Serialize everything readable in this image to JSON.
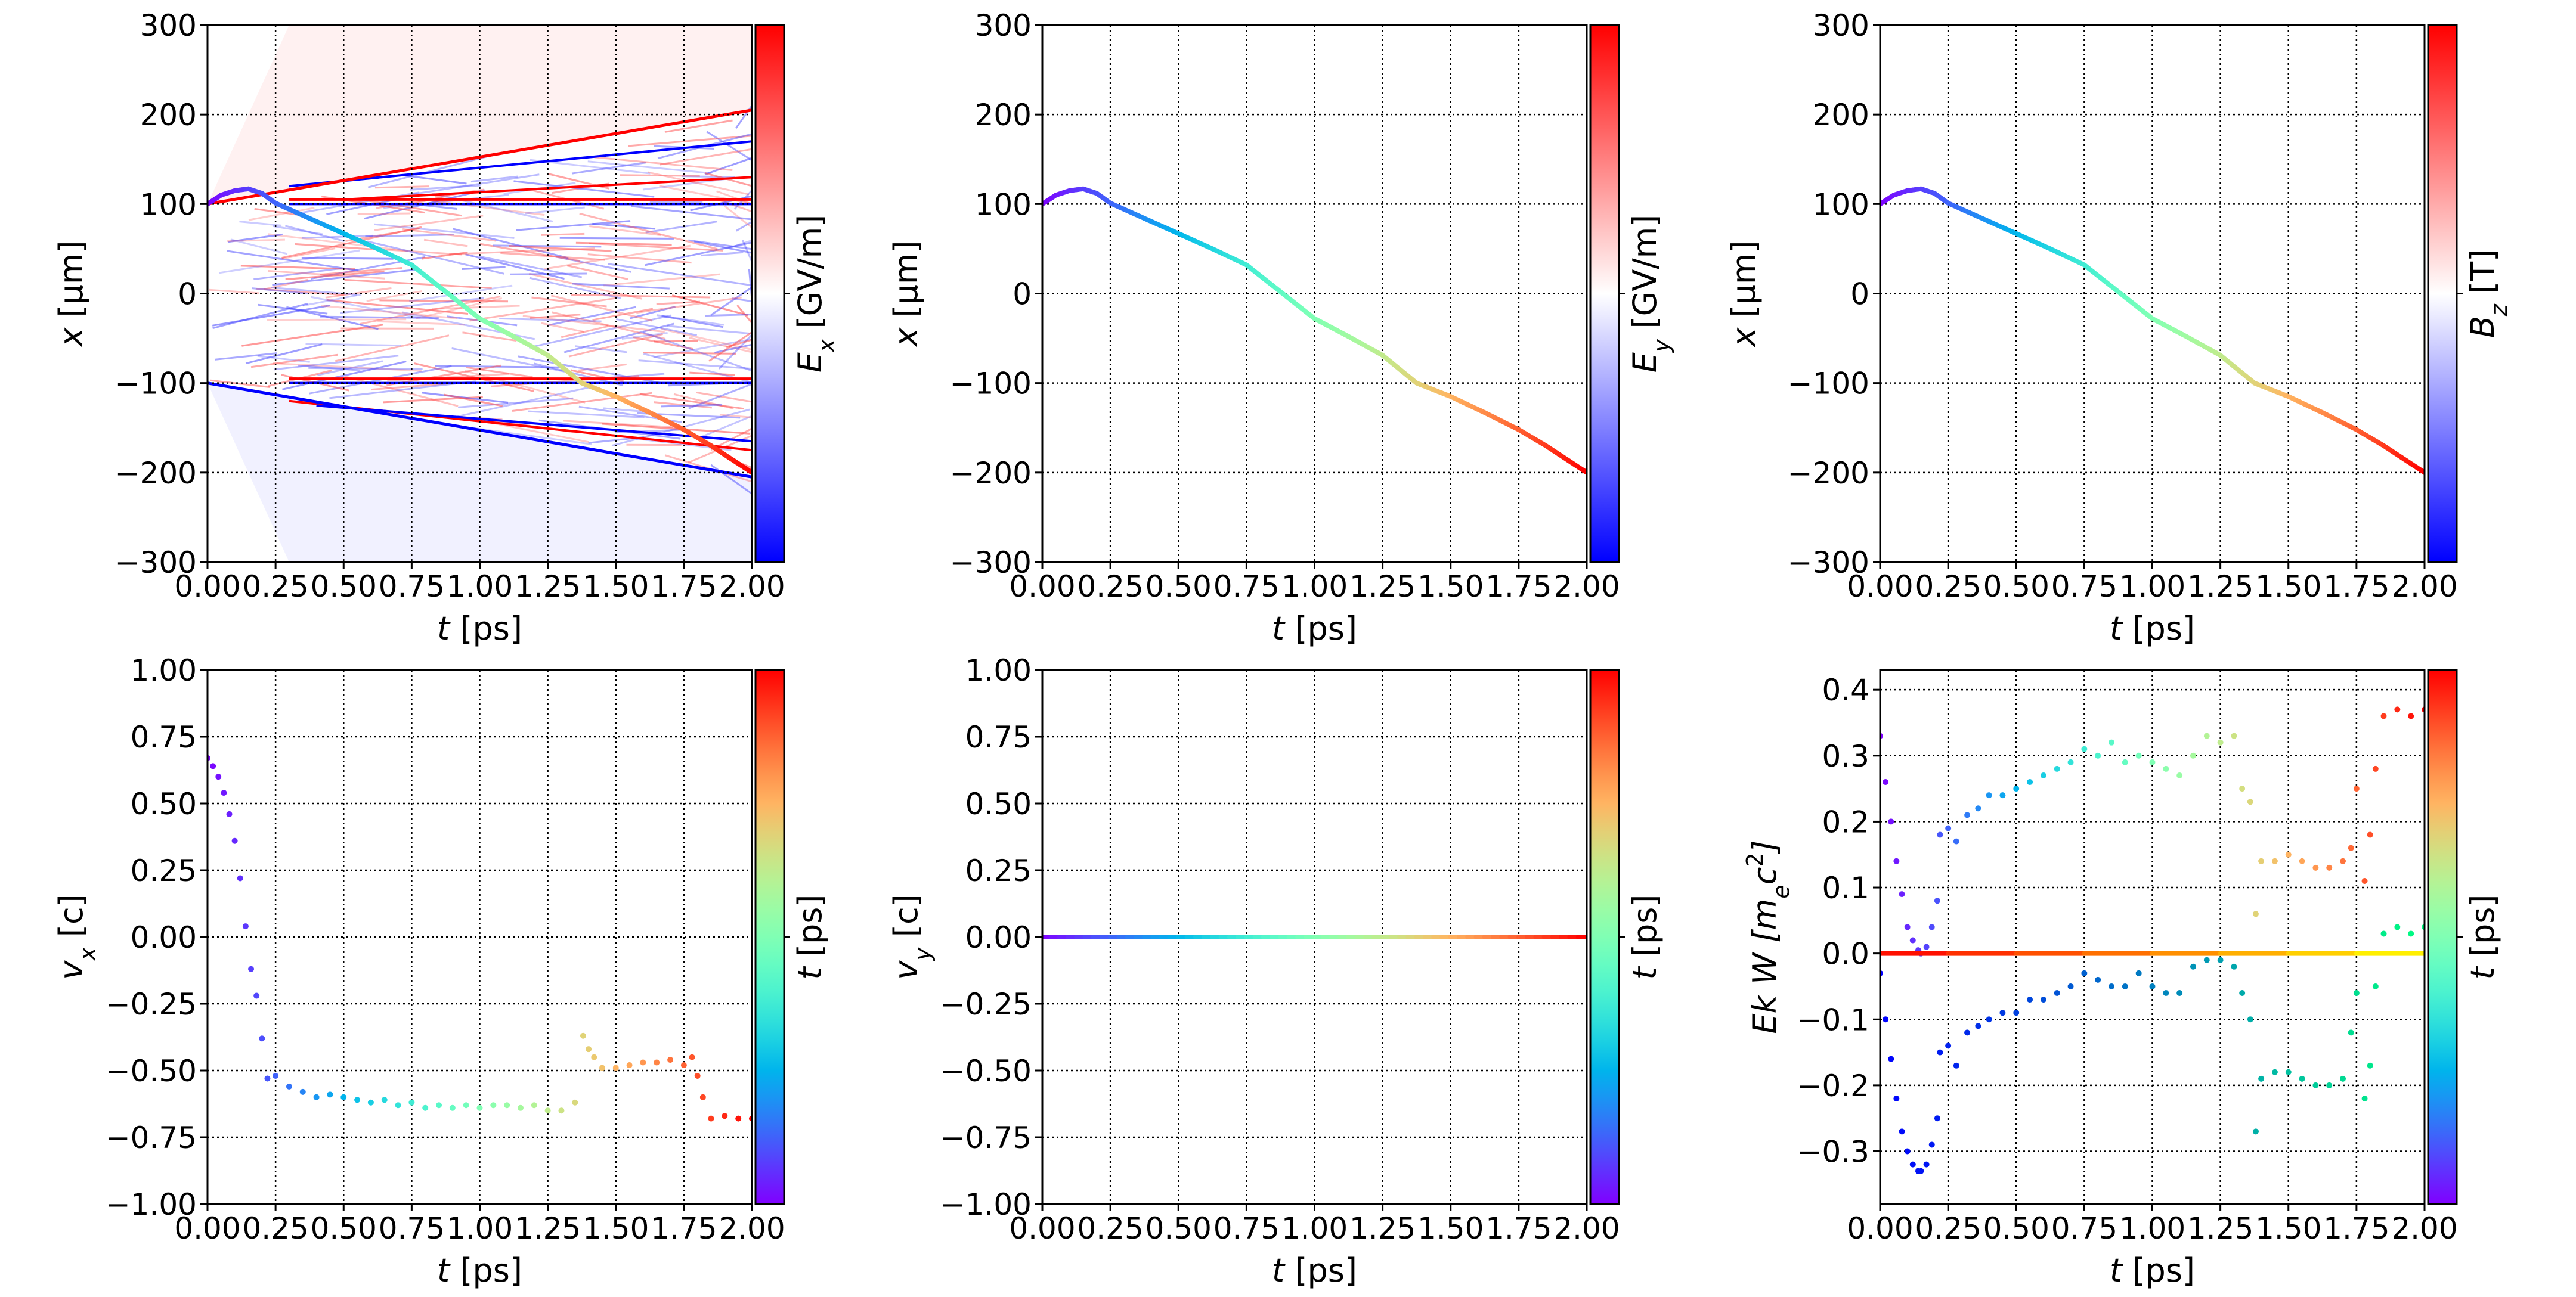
{
  "chart_data": [
    {
      "type": "line",
      "panel": "top-left",
      "background": "heatmap field Ex (bwr colormap)",
      "xlabel": [
        {
          "t": "t",
          "s": "i"
        },
        {
          "t": "  [ps]"
        }
      ],
      "ylabel": [
        {
          "t": "x",
          "s": "i"
        },
        {
          "t": "  [μm]"
        }
      ],
      "colorbar": {
        "cmap": "bwr",
        "label": [
          {
            "t": "E",
            "s": "i"
          },
          {
            "t": "x",
            "s": "sub"
          },
          {
            "t": "  [GV/m]"
          }
        ]
      },
      "xlim": [
        0,
        2
      ],
      "ylim": [
        -300,
        300
      ],
      "grid": true,
      "xticks": [
        0,
        0.25,
        0.5,
        0.75,
        1.0,
        1.25,
        1.5,
        1.75,
        2.0
      ],
      "xticklabels": [
        "0.00",
        "0.25",
        "0.50",
        "0.75",
        "1.00",
        "1.25",
        "1.50",
        "1.75",
        "2.00"
      ],
      "yticks": [
        -300,
        -200,
        -100,
        0,
        100,
        200,
        300
      ],
      "yticklabels": [
        "−300",
        "−200",
        "−100",
        "0",
        "100",
        "200",
        "300"
      ],
      "field_boundaries": {
        "upper": [
          [
            0,
            100
          ],
          [
            2,
            205
          ]
        ],
        "lower": [
          [
            0,
            -100
          ],
          [
            2,
            -205
          ]
        ]
      },
      "series": [
        {
          "color_by": "t",
          "cmap": "rainbow",
          "x": [
            0,
            0.05,
            0.1,
            0.15,
            0.2,
            0.25,
            0.375,
            0.5,
            0.625,
            0.75,
            0.875,
            1.0,
            1.125,
            1.25,
            1.375,
            1.5,
            1.625,
            1.75,
            1.85,
            1.925,
            2.0
          ],
          "y": [
            100,
            110,
            115,
            117,
            112,
            101,
            84,
            67,
            50,
            32,
            2,
            -28,
            -48,
            -69,
            -100,
            -115,
            -133,
            -152,
            -170,
            -185,
            -200
          ]
        }
      ]
    },
    {
      "type": "line",
      "panel": "top-middle",
      "xlabel": [
        {
          "t": "t",
          "s": "i"
        },
        {
          "t": "  [ps]"
        }
      ],
      "ylabel": [
        {
          "t": "x",
          "s": "i"
        },
        {
          "t": "  [μm]"
        }
      ],
      "colorbar": {
        "cmap": "bwr",
        "label": [
          {
            "t": "E",
            "s": "i"
          },
          {
            "t": "y",
            "s": "sub"
          },
          {
            "t": "  [GV/m]"
          }
        ]
      },
      "xlim": [
        0,
        2
      ],
      "ylim": [
        -300,
        300
      ],
      "grid": true,
      "xticks": [
        0,
        0.25,
        0.5,
        0.75,
        1.0,
        1.25,
        1.5,
        1.75,
        2.0
      ],
      "xticklabels": [
        "0.00",
        "0.25",
        "0.50",
        "0.75",
        "1.00",
        "1.25",
        "1.50",
        "1.75",
        "2.00"
      ],
      "yticks": [
        -300,
        -200,
        -100,
        0,
        100,
        200,
        300
      ],
      "yticklabels": [
        "−300",
        "−200",
        "−100",
        "0",
        "100",
        "200",
        "300"
      ],
      "series": [
        {
          "color_by": "t",
          "cmap": "rainbow",
          "x": [
            0,
            0.05,
            0.1,
            0.15,
            0.2,
            0.25,
            0.375,
            0.5,
            0.625,
            0.75,
            0.875,
            1.0,
            1.125,
            1.25,
            1.375,
            1.5,
            1.625,
            1.75,
            1.85,
            1.925,
            2.0
          ],
          "y": [
            100,
            110,
            115,
            117,
            112,
            101,
            84,
            67,
            50,
            32,
            2,
            -28,
            -48,
            -69,
            -100,
            -115,
            -133,
            -152,
            -170,
            -185,
            -200
          ]
        }
      ]
    },
    {
      "type": "line",
      "panel": "top-right",
      "xlabel": [
        {
          "t": "t",
          "s": "i"
        },
        {
          "t": "  [ps]"
        }
      ],
      "ylabel": [
        {
          "t": "x",
          "s": "i"
        },
        {
          "t": "  [μm]"
        }
      ],
      "colorbar": {
        "cmap": "bwr",
        "label": [
          {
            "t": "B",
            "s": "i"
          },
          {
            "t": "z",
            "s": "sub"
          },
          {
            "t": "  [T]"
          }
        ]
      },
      "xlim": [
        0,
        2
      ],
      "ylim": [
        -300,
        300
      ],
      "grid": true,
      "xticks": [
        0,
        0.25,
        0.5,
        0.75,
        1.0,
        1.25,
        1.5,
        1.75,
        2.0
      ],
      "xticklabels": [
        "0.00",
        "0.25",
        "0.50",
        "0.75",
        "1.00",
        "1.25",
        "1.50",
        "1.75",
        "2.00"
      ],
      "yticks": [
        -300,
        -200,
        -100,
        0,
        100,
        200,
        300
      ],
      "yticklabels": [
        "−300",
        "−200",
        "−100",
        "0",
        "100",
        "200",
        "300"
      ],
      "series": [
        {
          "color_by": "t",
          "cmap": "rainbow",
          "x": [
            0,
            0.05,
            0.1,
            0.15,
            0.2,
            0.25,
            0.375,
            0.5,
            0.625,
            0.75,
            0.875,
            1.0,
            1.125,
            1.25,
            1.375,
            1.5,
            1.625,
            1.75,
            1.85,
            1.925,
            2.0
          ],
          "y": [
            100,
            110,
            115,
            117,
            112,
            101,
            84,
            67,
            50,
            32,
            2,
            -28,
            -48,
            -69,
            -100,
            -115,
            -133,
            -152,
            -170,
            -185,
            -200
          ]
        }
      ]
    },
    {
      "type": "scatter",
      "panel": "bottom-left",
      "xlabel": [
        {
          "t": "t",
          "s": "i"
        },
        {
          "t": "  [ps]"
        }
      ],
      "ylabel": [
        {
          "t": "v",
          "s": "i"
        },
        {
          "t": "x",
          "s": "sub"
        },
        {
          "t": " [c]"
        }
      ],
      "colorbar": {
        "cmap": "rainbow",
        "label": [
          {
            "t": "t",
            "s": "i"
          },
          {
            "t": "  [ps]"
          }
        ]
      },
      "xlim": [
        0,
        2
      ],
      "ylim": [
        -1,
        1
      ],
      "grid": true,
      "xticks": [
        0,
        0.25,
        0.5,
        0.75,
        1.0,
        1.25,
        1.5,
        1.75,
        2.0
      ],
      "xticklabels": [
        "0.00",
        "0.25",
        "0.50",
        "0.75",
        "1.00",
        "1.25",
        "1.50",
        "1.75",
        "2.00"
      ],
      "yticks": [
        -1,
        -0.75,
        -0.5,
        -0.25,
        0,
        0.25,
        0.5,
        0.75,
        1
      ],
      "yticklabels": [
        "−1.00",
        "−0.75",
        "−0.50",
        "−0.25",
        "0.00",
        "0.25",
        "0.50",
        "0.75",
        "1.00"
      ],
      "series": [
        {
          "color_by": "t",
          "cmap": "rainbow",
          "x": [
            0,
            0.02,
            0.04,
            0.06,
            0.08,
            0.1,
            0.12,
            0.14,
            0.16,
            0.18,
            0.2,
            0.22,
            0.25,
            0.3,
            0.35,
            0.4,
            0.45,
            0.5,
            0.55,
            0.6,
            0.65,
            0.7,
            0.75,
            0.8,
            0.85,
            0.9,
            0.95,
            1.0,
            1.05,
            1.1,
            1.15,
            1.2,
            1.25,
            1.3,
            1.35,
            1.38,
            1.4,
            1.42,
            1.45,
            1.5,
            1.55,
            1.6,
            1.65,
            1.7,
            1.75,
            1.78,
            1.8,
            1.82,
            1.85,
            1.9,
            1.95,
            2.0
          ],
          "y": [
            0.67,
            0.64,
            0.6,
            0.54,
            0.46,
            0.36,
            0.22,
            0.04,
            -0.12,
            -0.22,
            -0.38,
            -0.53,
            -0.52,
            -0.56,
            -0.58,
            -0.6,
            -0.59,
            -0.6,
            -0.61,
            -0.62,
            -0.61,
            -0.63,
            -0.62,
            -0.64,
            -0.63,
            -0.64,
            -0.63,
            -0.64,
            -0.63,
            -0.63,
            -0.64,
            -0.63,
            -0.65,
            -0.65,
            -0.62,
            -0.37,
            -0.42,
            -0.45,
            -0.49,
            -0.49,
            -0.48,
            -0.47,
            -0.47,
            -0.46,
            -0.48,
            -0.45,
            -0.52,
            -0.6,
            -0.68,
            -0.67,
            -0.68,
            -0.68
          ]
        }
      ]
    },
    {
      "type": "line",
      "panel": "bottom-middle",
      "xlabel": [
        {
          "t": "t",
          "s": "i"
        },
        {
          "t": "  [ps]"
        }
      ],
      "ylabel": [
        {
          "t": "v",
          "s": "i"
        },
        {
          "t": "y",
          "s": "sub"
        },
        {
          "t": " [c]"
        }
      ],
      "colorbar": {
        "cmap": "rainbow",
        "label": [
          {
            "t": "t",
            "s": "i"
          },
          {
            "t": "  [ps]"
          }
        ]
      },
      "xlim": [
        0,
        2
      ],
      "ylim": [
        -1,
        1
      ],
      "grid": true,
      "xticks": [
        0,
        0.25,
        0.5,
        0.75,
        1.0,
        1.25,
        1.5,
        1.75,
        2.0
      ],
      "xticklabels": [
        "0.00",
        "0.25",
        "0.50",
        "0.75",
        "1.00",
        "1.25",
        "1.50",
        "1.75",
        "2.00"
      ],
      "yticks": [
        -1,
        -0.75,
        -0.5,
        -0.25,
        0,
        0.25,
        0.5,
        0.75,
        1
      ],
      "yticklabels": [
        "−1.00",
        "−0.75",
        "−0.50",
        "−0.25",
        "0.00",
        "0.25",
        "0.50",
        "0.75",
        "1.00"
      ],
      "series": [
        {
          "color_by": "t",
          "cmap": "rainbow",
          "x": [
            0,
            0.25,
            0.5,
            0.75,
            1.0,
            1.25,
            1.5,
            1.75,
            2.0
          ],
          "y": [
            0,
            0,
            0,
            0,
            0,
            0,
            0,
            0,
            0
          ]
        }
      ]
    },
    {
      "type": "scatter",
      "panel": "bottom-right",
      "xlabel": [
        {
          "t": "t",
          "s": "i"
        },
        {
          "t": "  [ps]"
        }
      ],
      "ylabel": [
        {
          "t": "Ek W [m",
          "s": "i"
        },
        {
          "t": "e",
          "s": "sub"
        },
        {
          "t": "c",
          "s": "i"
        },
        {
          "t": "2",
          "s": "sup"
        },
        {
          "t": "]",
          "s": "i"
        }
      ],
      "colorbar": {
        "cmap": "rainbow",
        "label": [
          {
            "t": "t",
            "s": "i"
          },
          {
            "t": "  [ps]"
          }
        ]
      },
      "xlim": [
        0,
        2
      ],
      "ylim": [
        -0.38,
        0.43
      ],
      "grid": true,
      "xticks": [
        0,
        0.25,
        0.5,
        0.75,
        1.0,
        1.25,
        1.5,
        1.75,
        2.0
      ],
      "xticklabels": [
        "0.00",
        "0.25",
        "0.50",
        "0.75",
        "1.00",
        "1.25",
        "1.50",
        "1.75",
        "2.00"
      ],
      "yticks": [
        -0.3,
        -0.2,
        -0.1,
        0,
        0.1,
        0.2,
        0.3,
        0.4
      ],
      "yticklabels": [
        "−0.3",
        "−0.2",
        "−0.1",
        "0.0",
        "0.1",
        "0.2",
        "0.3",
        "0.4"
      ],
      "series": [
        {
          "cmap": "rainbow",
          "marker": "dot",
          "x": [
            0,
            0.02,
            0.04,
            0.06,
            0.08,
            0.1,
            0.12,
            0.14,
            0.15,
            0.17,
            0.19,
            0.21,
            0.22,
            0.25,
            0.28,
            0.32,
            0.36,
            0.4,
            0.45,
            0.5,
            0.55,
            0.6,
            0.65,
            0.7,
            0.75,
            0.8,
            0.85,
            0.9,
            0.95,
            1.0,
            1.05,
            1.1,
            1.15,
            1.2,
            1.25,
            1.3,
            1.33,
            1.36,
            1.38,
            1.4,
            1.45,
            1.5,
            1.55,
            1.6,
            1.65,
            1.7,
            1.73,
            1.75,
            1.78,
            1.8,
            1.82,
            1.85,
            1.9,
            1.95,
            2.0
          ],
          "y": [
            0.33,
            0.26,
            0.2,
            0.14,
            0.09,
            0.04,
            0.02,
            0.005,
            0,
            0.01,
            0.04,
            0.08,
            0.18,
            0.19,
            0.17,
            0.21,
            0.22,
            0.24,
            0.24,
            0.25,
            0.26,
            0.27,
            0.28,
            0.29,
            0.31,
            0.3,
            0.32,
            0.29,
            0.3,
            0.29,
            0.28,
            0.27,
            0.3,
            0.33,
            0.32,
            0.33,
            0.25,
            0.23,
            0.06,
            0.14,
            0.14,
            0.15,
            0.14,
            0.13,
            0.13,
            0.14,
            0.16,
            0.25,
            0.11,
            0.18,
            0.28,
            0.36,
            0.37,
            0.36,
            0.37
          ]
        },
        {
          "cmap": "winter",
          "marker": "dot",
          "x": [
            0,
            0.02,
            0.04,
            0.06,
            0.08,
            0.1,
            0.12,
            0.14,
            0.15,
            0.17,
            0.19,
            0.21,
            0.22,
            0.25,
            0.28,
            0.32,
            0.36,
            0.4,
            0.45,
            0.5,
            0.55,
            0.6,
            0.65,
            0.7,
            0.75,
            0.8,
            0.85,
            0.9,
            0.95,
            1.0,
            1.05,
            1.1,
            1.15,
            1.2,
            1.25,
            1.3,
            1.33,
            1.36,
            1.38,
            1.4,
            1.45,
            1.5,
            1.55,
            1.6,
            1.65,
            1.7,
            1.73,
            1.75,
            1.78,
            1.8,
            1.82,
            1.85,
            1.9,
            1.95,
            2.0
          ],
          "y": [
            -0.03,
            -0.1,
            -0.16,
            -0.22,
            -0.27,
            -0.3,
            -0.32,
            -0.33,
            -0.33,
            -0.32,
            -0.29,
            -0.25,
            -0.15,
            -0.14,
            -0.17,
            -0.12,
            -0.11,
            -0.1,
            -0.09,
            -0.09,
            -0.07,
            -0.07,
            -0.06,
            -0.05,
            -0.03,
            -0.04,
            -0.05,
            -0.05,
            -0.03,
            -0.05,
            -0.06,
            -0.06,
            -0.02,
            -0.01,
            -0.01,
            -0.02,
            -0.06,
            -0.1,
            -0.27,
            -0.19,
            -0.18,
            -0.18,
            -0.19,
            -0.2,
            -0.2,
            -0.19,
            -0.12,
            -0.06,
            -0.22,
            -0.17,
            -0.05,
            0.03,
            0.04,
            0.03,
            0.04
          ]
        },
        {
          "cmap": "autumn",
          "marker": "line",
          "x": [
            0,
            2
          ],
          "y": [
            0,
            0
          ]
        }
      ]
    }
  ]
}
